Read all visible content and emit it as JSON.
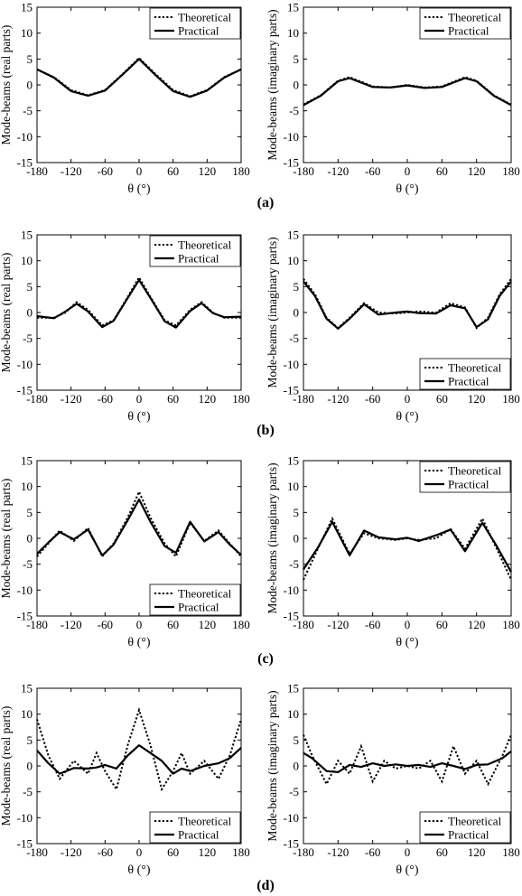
{
  "chart_data": [
    {
      "type": "line",
      "panel": "a",
      "side": "left",
      "ylabel": "Mode-beams (real parts)",
      "xlabel": "θ (°)",
      "xlim": [
        -180,
        180
      ],
      "ylim": [
        -15,
        15
      ],
      "xticks": [
        -180,
        -120,
        -60,
        0,
        60,
        120,
        180
      ],
      "yticks": [
        15,
        10,
        5,
        0,
        -5,
        -10,
        -15
      ],
      "legend": "top-right",
      "series": [
        {
          "name": "Theoretical",
          "x": [
            -180,
            -150,
            -120,
            -90,
            -60,
            -30,
            0,
            30,
            60,
            90,
            120,
            150,
            180
          ],
          "y": [
            3,
            1.5,
            -1,
            -2,
            -1,
            2,
            5.2,
            2,
            -1,
            -2.2,
            -1,
            1.5,
            3
          ]
        },
        {
          "name": "Practical",
          "x": [
            -180,
            -150,
            -120,
            -90,
            -60,
            -30,
            0,
            30,
            60,
            90,
            120,
            150,
            180
          ],
          "y": [
            3,
            1.4,
            -1.2,
            -2.1,
            -1.1,
            1.9,
            5,
            1.8,
            -1.2,
            -2.3,
            -1.1,
            1.4,
            3
          ]
        }
      ]
    },
    {
      "type": "line",
      "panel": "a",
      "side": "right",
      "ylabel": "Mode-beams (imaginary parts)",
      "xlabel": "θ (°)",
      "xlim": [
        -180,
        180
      ],
      "ylim": [
        -15,
        15
      ],
      "xticks": [
        -180,
        -120,
        -60,
        0,
        60,
        120,
        180
      ],
      "yticks": [
        15,
        10,
        5,
        0,
        -5,
        -10,
        -15
      ],
      "legend": "top-right",
      "series": [
        {
          "name": "Theoretical",
          "x": [
            -180,
            -150,
            -120,
            -100,
            -60,
            -30,
            0,
            30,
            60,
            100,
            120,
            150,
            180
          ],
          "y": [
            -3.8,
            -2,
            0.8,
            1.5,
            -0.3,
            -0.5,
            0,
            -0.5,
            -0.3,
            1.5,
            0.8,
            -2,
            -3.8
          ]
        },
        {
          "name": "Practical",
          "x": [
            -180,
            -150,
            -120,
            -100,
            -60,
            -30,
            0,
            30,
            60,
            100,
            120,
            150,
            180
          ],
          "y": [
            -3.9,
            -2.1,
            0.7,
            1.3,
            -0.4,
            -0.5,
            -0.1,
            -0.6,
            -0.4,
            1.3,
            0.7,
            -2.1,
            -3.9
          ]
        }
      ]
    },
    {
      "type": "line",
      "panel": "b",
      "side": "left",
      "ylabel": "Mode-beams (real parts)",
      "xlabel": "θ (°)",
      "xlim": [
        -180,
        180
      ],
      "ylim": [
        -15,
        15
      ],
      "xticks": [
        -180,
        -120,
        -60,
        0,
        60,
        120,
        180
      ],
      "yticks": [
        15,
        10,
        5,
        0,
        -5,
        -10,
        -15
      ],
      "legend": "top-right",
      "series": [
        {
          "name": "Theoretical",
          "x": [
            -180,
            -150,
            -130,
            -110,
            -90,
            -65,
            -45,
            -20,
            0,
            20,
            45,
            65,
            90,
            110,
            130,
            150,
            180
          ],
          "y": [
            -1,
            -1,
            0,
            2,
            0.5,
            -2.5,
            -1.5,
            3,
            6.8,
            3,
            -1.5,
            -2.5,
            0.5,
            2,
            0,
            -1,
            -1
          ]
        },
        {
          "name": "Practical",
          "x": [
            -180,
            -150,
            -130,
            -110,
            -90,
            -65,
            -45,
            -20,
            0,
            20,
            45,
            65,
            90,
            110,
            130,
            150,
            180
          ],
          "y": [
            -0.7,
            -1.1,
            0.2,
            1.7,
            0.2,
            -2.8,
            -1.6,
            2.8,
            6.3,
            2.8,
            -1.7,
            -2.9,
            0.3,
            1.8,
            -0.1,
            -0.9,
            -0.8
          ]
        }
      ]
    },
    {
      "type": "line",
      "panel": "b",
      "side": "right",
      "ylabel": "Mode-beams (imaginary parts)",
      "xlabel": "θ (°)",
      "xlim": [
        -180,
        180
      ],
      "ylim": [
        -15,
        15
      ],
      "xticks": [
        -180,
        -120,
        -60,
        0,
        60,
        120,
        180
      ],
      "yticks": [
        15,
        10,
        5,
        0,
        -5,
        -10,
        -15
      ],
      "legend": "bottom-right",
      "series": [
        {
          "name": "Theoretical",
          "x": [
            -180,
            -160,
            -140,
            -120,
            -100,
            -75,
            -50,
            -20,
            0,
            20,
            50,
            75,
            100,
            120,
            140,
            160,
            180
          ],
          "y": [
            6.5,
            3.5,
            -1,
            -3,
            -1,
            1.8,
            0,
            -0.2,
            0,
            0.2,
            0,
            1.8,
            1,
            -3,
            -1,
            3.5,
            6.5
          ]
        },
        {
          "name": "Practical",
          "x": [
            -180,
            -160,
            -140,
            -120,
            -100,
            -75,
            -50,
            -20,
            0,
            20,
            50,
            75,
            100,
            120,
            140,
            160,
            180
          ],
          "y": [
            6,
            3.2,
            -1.2,
            -3.1,
            -1.2,
            1.6,
            -0.4,
            0,
            0.2,
            -0.1,
            -0.2,
            1.4,
            0.8,
            -2.8,
            -1.3,
            3.2,
            6
          ]
        }
      ]
    },
    {
      "type": "line",
      "panel": "c",
      "side": "left",
      "ylabel": "Mode-beams (real parts)",
      "xlabel": "θ (°)",
      "xlim": [
        -180,
        180
      ],
      "ylim": [
        -15,
        15
      ],
      "xticks": [
        -180,
        -120,
        -60,
        0,
        60,
        120,
        180
      ],
      "yticks": [
        15,
        10,
        5,
        0,
        -5,
        -10,
        -15
      ],
      "legend": "bottom-right",
      "series": [
        {
          "name": "Theoretical",
          "x": [
            -180,
            -160,
            -140,
            -115,
            -90,
            -65,
            -45,
            -20,
            0,
            20,
            45,
            65,
            90,
            115,
            140,
            160,
            180
          ],
          "y": [
            -3.5,
            -1,
            1.5,
            -0.5,
            2,
            -3.5,
            -1,
            4,
            9,
            4,
            -1,
            -3.5,
            3,
            -0.5,
            1.5,
            -1,
            -3.5
          ]
        },
        {
          "name": "Practical",
          "x": [
            -180,
            -160,
            -140,
            -115,
            -90,
            -65,
            -45,
            -20,
            0,
            20,
            45,
            65,
            90,
            115,
            140,
            160,
            180
          ],
          "y": [
            -3,
            -0.8,
            1.2,
            -0.2,
            1.7,
            -3.3,
            -1.2,
            3.5,
            7.5,
            3.2,
            -1.5,
            -2.8,
            3.2,
            -0.6,
            1.2,
            -1.2,
            -3.2
          ]
        }
      ]
    },
    {
      "type": "line",
      "panel": "c",
      "side": "right",
      "ylabel": "Mode-beams (imaginary parts)",
      "xlabel": "θ (°)",
      "xlim": [
        -180,
        180
      ],
      "ylim": [
        -15,
        15
      ],
      "xticks": [
        -180,
        -120,
        -60,
        0,
        60,
        120,
        180
      ],
      "yticks": [
        15,
        10,
        5,
        0,
        -5,
        -10,
        -15
      ],
      "legend": "top-right",
      "series": [
        {
          "name": "Theoretical",
          "x": [
            -180,
            -155,
            -130,
            -100,
            -75,
            -50,
            -20,
            0,
            20,
            50,
            75,
            100,
            130,
            155,
            180
          ],
          "y": [
            -8,
            -2,
            3.8,
            -3,
            1,
            0,
            -0.3,
            0,
            -0.3,
            0,
            1.8,
            -2,
            3.8,
            -2,
            -8
          ]
        },
        {
          "name": "Practical",
          "x": [
            -180,
            -155,
            -130,
            -100,
            -75,
            -50,
            -20,
            0,
            20,
            50,
            75,
            100,
            130,
            155,
            180
          ],
          "y": [
            -6,
            -1.8,
            3.2,
            -3.3,
            1.5,
            0.2,
            -0.2,
            0.1,
            -0.5,
            0.6,
            1.7,
            -2.5,
            3,
            -1.5,
            -6.5
          ]
        }
      ]
    },
    {
      "type": "line",
      "panel": "d",
      "side": "left",
      "ylabel": "Mode-beams (real parts)",
      "xlabel": "θ (°)",
      "xlim": [
        -180,
        180
      ],
      "ylim": [
        -15,
        15
      ],
      "xticks": [
        -180,
        -120,
        -60,
        0,
        60,
        120,
        180
      ],
      "yticks": [
        15,
        10,
        5,
        0,
        -5,
        -10,
        -15
      ],
      "legend": "bottom-right",
      "series": [
        {
          "name": "Theoretical",
          "x": [
            -180,
            -160,
            -140,
            -115,
            -90,
            -75,
            -60,
            -40,
            -20,
            0,
            20,
            40,
            60,
            75,
            90,
            115,
            140,
            160,
            180
          ],
          "y": [
            9,
            2,
            -2.5,
            1,
            -1.5,
            2.5,
            -1,
            -4.5,
            4,
            10.8,
            4,
            -4.5,
            -1,
            2.5,
            -1.5,
            1,
            -2.5,
            2,
            9
          ]
        },
        {
          "name": "Practical",
          "x": [
            -180,
            -160,
            -140,
            -115,
            -90,
            -75,
            -60,
            -40,
            -20,
            0,
            20,
            40,
            60,
            75,
            90,
            115,
            140,
            160,
            180
          ],
          "y": [
            3,
            0.5,
            -1.5,
            -0.4,
            -0.5,
            -0.3,
            0.2,
            -0.5,
            2,
            4,
            2.5,
            1,
            -1.5,
            -0.5,
            -1,
            0,
            0.5,
            1.5,
            3.5
          ]
        }
      ]
    },
    {
      "type": "line",
      "panel": "d",
      "side": "right",
      "ylabel": "Mode-beams (imaginary parts)",
      "xlabel": "θ (°)",
      "xlim": [
        -180,
        180
      ],
      "ylim": [
        -15,
        15
      ],
      "xticks": [
        -180,
        -120,
        -60,
        0,
        60,
        120,
        180
      ],
      "yticks": [
        15,
        10,
        5,
        0,
        -5,
        -10,
        -15
      ],
      "legend": "bottom-right",
      "series": [
        {
          "name": "Theoretical",
          "x": [
            -180,
            -165,
            -140,
            -120,
            -100,
            -80,
            -60,
            -40,
            -20,
            0,
            20,
            40,
            60,
            80,
            100,
            120,
            140,
            165,
            180
          ],
          "y": [
            6,
            2,
            -3.5,
            1,
            -1.5,
            3.8,
            -3,
            1,
            -0.5,
            0,
            -0.5,
            1,
            -3,
            3.8,
            -1.5,
            1,
            -3.5,
            2,
            6
          ]
        },
        {
          "name": "Practical",
          "x": [
            -180,
            -165,
            -140,
            -120,
            -100,
            -80,
            -60,
            -40,
            -20,
            0,
            20,
            40,
            60,
            80,
            100,
            120,
            140,
            165,
            180
          ],
          "y": [
            2.5,
            1.5,
            -1,
            -1.2,
            0.2,
            -0.2,
            0.5,
            0,
            0.3,
            0,
            0.2,
            -0.2,
            0.5,
            0,
            -0.6,
            0.2,
            0.3,
            1.5,
            2.8
          ]
        }
      ]
    }
  ],
  "panel_labels": [
    "(a)",
    "(b)",
    "(c)",
    "(d)"
  ]
}
